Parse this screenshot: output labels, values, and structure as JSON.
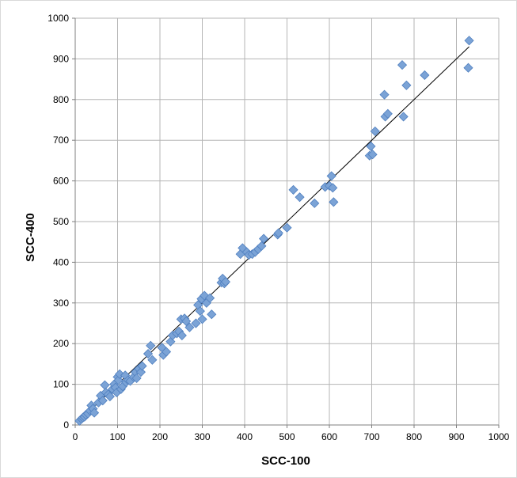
{
  "chart_data": {
    "type": "scatter",
    "xlabel": "SCC-100",
    "ylabel": "SCC-400",
    "xlim": [
      0,
      1000
    ],
    "ylim": [
      0,
      1000
    ],
    "x_ticks": [
      "0",
      "100",
      "200",
      "300",
      "400",
      "500",
      "600",
      "700",
      "800",
      "900",
      "1000"
    ],
    "y_ticks": [
      "0",
      "100",
      "200",
      "300",
      "400",
      "500",
      "600",
      "700",
      "800",
      "900",
      "1000"
    ],
    "grid": true,
    "legend": "none",
    "marker_color": "#7ba3d6",
    "marker_edge_color": "#4f7fbf",
    "trendline": {
      "x": [
        10,
        930
      ],
      "y": [
        10,
        930
      ],
      "color": "#000000"
    },
    "series": [
      {
        "marker": "diamond",
        "points": [
          [
            10,
            10
          ],
          [
            15,
            15
          ],
          [
            18,
            18
          ],
          [
            22,
            20
          ],
          [
            25,
            25
          ],
          [
            30,
            28
          ],
          [
            35,
            35
          ],
          [
            38,
            48
          ],
          [
            42,
            40
          ],
          [
            45,
            30
          ],
          [
            55,
            55
          ],
          [
            60,
            72
          ],
          [
            65,
            60
          ],
          [
            70,
            98
          ],
          [
            72,
            80
          ],
          [
            78,
            75
          ],
          [
            82,
            70
          ],
          [
            88,
            88
          ],
          [
            92,
            100
          ],
          [
            95,
            92
          ],
          [
            98,
            80
          ],
          [
            100,
            118
          ],
          [
            102,
            110
          ],
          [
            105,
            125
          ],
          [
            108,
            88
          ],
          [
            112,
            95
          ],
          [
            118,
            122
          ],
          [
            120,
            105
          ],
          [
            125,
            110
          ],
          [
            130,
            108
          ],
          [
            138,
            118
          ],
          [
            142,
            130
          ],
          [
            145,
            115
          ],
          [
            150,
            138
          ],
          [
            155,
            130
          ],
          [
            158,
            145
          ],
          [
            172,
            175
          ],
          [
            178,
            195
          ],
          [
            182,
            160
          ],
          [
            205,
            190
          ],
          [
            208,
            172
          ],
          [
            215,
            180
          ],
          [
            225,
            205
          ],
          [
            230,
            220
          ],
          [
            240,
            225
          ],
          [
            245,
            230
          ],
          [
            250,
            260
          ],
          [
            252,
            220
          ],
          [
            258,
            262
          ],
          [
            262,
            255
          ],
          [
            270,
            240
          ],
          [
            285,
            250
          ],
          [
            290,
            295
          ],
          [
            295,
            280
          ],
          [
            298,
            310
          ],
          [
            300,
            260
          ],
          [
            305,
            318
          ],
          [
            310,
            300
          ],
          [
            318,
            312
          ],
          [
            322,
            272
          ],
          [
            345,
            350
          ],
          [
            348,
            360
          ],
          [
            352,
            348
          ],
          [
            355,
            352
          ],
          [
            390,
            420
          ],
          [
            395,
            435
          ],
          [
            405,
            425
          ],
          [
            410,
            418
          ],
          [
            418,
            420
          ],
          [
            425,
            425
          ],
          [
            432,
            432
          ],
          [
            440,
            440
          ],
          [
            445,
            458
          ],
          [
            478,
            468
          ],
          [
            480,
            472
          ],
          [
            500,
            485
          ],
          [
            515,
            578
          ],
          [
            530,
            560
          ],
          [
            565,
            545
          ],
          [
            590,
            585
          ],
          [
            600,
            588
          ],
          [
            605,
            612
          ],
          [
            608,
            583
          ],
          [
            610,
            548
          ],
          [
            695,
            662
          ],
          [
            698,
            685
          ],
          [
            702,
            665
          ],
          [
            708,
            722
          ],
          [
            730,
            812
          ],
          [
            732,
            758
          ],
          [
            738,
            765
          ],
          [
            772,
            885
          ],
          [
            775,
            758
          ],
          [
            782,
            835
          ],
          [
            825,
            860
          ],
          [
            928,
            878
          ],
          [
            930,
            945
          ]
        ]
      }
    ]
  }
}
